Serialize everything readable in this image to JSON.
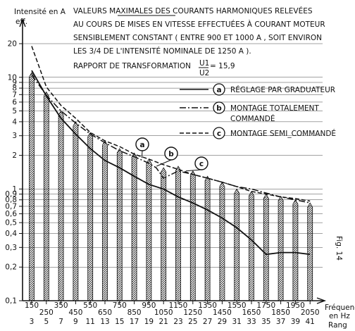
{
  "chart_data": {
    "type": "line",
    "title_lines": [
      "VALEURS MAXIMALES DES COURANTS HARMONIQUES RELEVÉES",
      "AU COURS DE MISES EN VITESSE EFFECTUÉES À COURANT MOTEUR",
      "SENSIBLEMENT CONSTANT ( ENTRE 900 ET 1000 A , SOIT ENVIRON",
      "LES 3/4 DE L'INTENSITÉ NOMINALE  DE 1250 A )."
    ],
    "ratio_label": "RAPPORT DE TRANSFORMATION",
    "ratio_num": "U1",
    "ratio_den": "U2",
    "ratio_value": "= 15,9",
    "ylabel_line1": "Intensité en A",
    "ylabel_line2": "eff.",
    "xlabel_line1": "Fréquence",
    "xlabel_line2": "en Hz",
    "rang_label": "Rang",
    "fig_label": "Fig. 14",
    "yscale": "log",
    "ylim": [
      0.1,
      20
    ],
    "y_ticks": [
      0.1,
      0.2,
      0.3,
      0.4,
      0.5,
      0.6,
      0.7,
      0.8,
      0.9,
      1,
      2,
      3,
      4,
      5,
      6,
      7,
      8,
      9,
      10,
      20
    ],
    "y_tick_labels": [
      "0,1",
      "0,2",
      "0,3",
      "0,4",
      "0,5",
      "0,6",
      "0,7",
      "0,8",
      "0,9",
      "1",
      "2",
      "3",
      "4",
      "5",
      "6",
      "7",
      "8",
      "9",
      "10",
      "20"
    ],
    "x_freq_top": [
      "150",
      "350",
      "550",
      "750",
      "950",
      "1150",
      "1350",
      "1550",
      "1750",
      "1950"
    ],
    "x_freq_bottom": [
      "250",
      "450",
      "650",
      "850",
      "1050",
      "1250",
      "1450",
      "1650",
      "1850",
      "2050"
    ],
    "x_rang": [
      "3",
      "5",
      "7",
      "9",
      "11",
      "13",
      "15",
      "17",
      "19",
      "21",
      "23",
      "25",
      "27",
      "29",
      "31",
      "33",
      "35",
      "37",
      "39",
      "41"
    ],
    "x_freq": [
      150,
      250,
      350,
      450,
      550,
      650,
      750,
      850,
      950,
      1050,
      1150,
      1250,
      1350,
      1450,
      1550,
      1650,
      1750,
      1850,
      1950,
      2050
    ],
    "bar_values": [
      11,
      7.4,
      5,
      4,
      3.2,
      2.7,
      2.3,
      2.1,
      1.85,
      1.55,
      1.6,
      1.45,
      1.3,
      1.15,
      1.0,
      0.95,
      0.9,
      0.86,
      0.8,
      0.75
    ],
    "series": [
      {
        "name": "a",
        "legend": "RÉGLAGE PAR GRADUATEUR",
        "style": "solid",
        "x": [
          150,
          250,
          350,
          450,
          550,
          650,
          750,
          850,
          950,
          1050,
          1150,
          1250,
          1350,
          1450,
          1550,
          1650,
          1750,
          1850,
          1950,
          2050
        ],
        "values": [
          11.5,
          6.8,
          4.3,
          3.1,
          2.3,
          1.8,
          1.55,
          1.3,
          1.1,
          1.0,
          0.85,
          0.75,
          0.65,
          0.55,
          0.45,
          0.35,
          0.26,
          0.27,
          0.27,
          0.26
        ]
      },
      {
        "name": "b",
        "legend_line1": "MONTAGE TOTALEMENT",
        "legend_line2": "COMMANDÉ",
        "style": "dashdot",
        "x": [
          150,
          250,
          350,
          450,
          550,
          650,
          750,
          850,
          950,
          1000,
          1050,
          1150,
          1250,
          1350,
          1450,
          1550,
          1650,
          1750,
          1850,
          1950,
          2050
        ],
        "values": [
          10.5,
          6.9,
          5.0,
          3.9,
          3.1,
          2.6,
          2.2,
          1.95,
          1.7,
          1.55,
          1.25,
          1.45,
          1.35,
          1.25,
          1.15,
          1.05,
          1.0,
          0.92,
          0.85,
          0.8,
          0.75
        ]
      },
      {
        "name": "c",
        "legend": "MONTAGE SEMI_COMMANDÉ",
        "style": "dashed",
        "x": [
          150,
          250,
          350,
          450,
          550,
          650,
          750,
          850,
          950,
          1050,
          1150,
          1250,
          1350,
          1450,
          1550,
          1650,
          1750,
          1850,
          1950,
          2050
        ],
        "values": [
          19,
          8.2,
          5.6,
          4.3,
          3.2,
          2.7,
          2.4,
          2.05,
          1.85,
          1.65,
          1.5,
          1.35,
          1.25,
          1.15,
          1.05,
          0.95,
          0.9,
          0.85,
          0.82,
          0.78
        ]
      }
    ]
  }
}
